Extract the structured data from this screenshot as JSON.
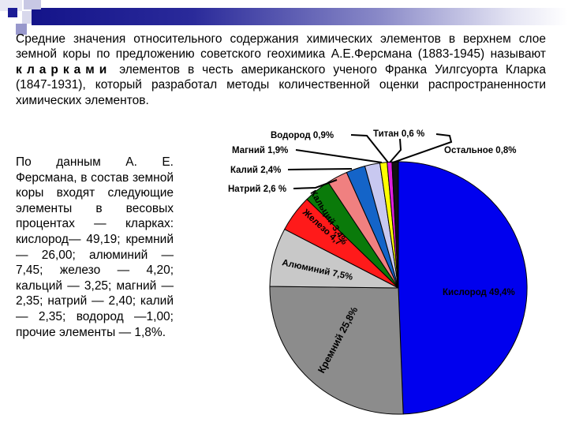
{
  "slide": {
    "top_paragraph": {
      "part1": "Средние значения относительного содержания химических элементов в верхнем слое земной коры по предложению советского геохимика А.Е.Ферсмана (1883-1945) называют ",
      "emphasis": "кларками",
      "part2": " элементов в честь американского ученого Франка Уилгсуорта Кларка (1847-1931), который разработал методы количественной оценки распространенности химических элементов."
    },
    "left_paragraph": "По данным А. Е. Ферсмана, в состав земной коры входят следующие элементы в весовых процентах — кларках: кислород— 49,19; кремний — 26,00; алюминий — 7,45; железо — 4,20; кальций — 3,25; магний — 2,35; натрий — 2,40; калий — 2,35; водород —1,00; прочие элементы — 1,8%."
  },
  "chart_data": {
    "type": "pie",
    "title": "",
    "start_angle_deg": 0,
    "direction": "clockwise",
    "slices": [
      {
        "name": "Кислород",
        "label": "Кислород 49,4%",
        "value": 49.4,
        "color": "#0000ee"
      },
      {
        "name": "Кремний",
        "label": "Кремний 25,8%",
        "value": 25.8,
        "color": "#8c8c8c"
      },
      {
        "name": "Алюминий",
        "label": "Алюминий 7,5%",
        "value": 7.5,
        "color": "#c8c8c8"
      },
      {
        "name": "Железо",
        "label": "Железо 4,7",
        "value": 4.7,
        "color": "#ff1a1a"
      },
      {
        "name": "Кальций",
        "label": "Кальций 3,4%",
        "value": 3.4,
        "color": "#0a7a0a"
      },
      {
        "name": "Натрий",
        "label": "Натрий 2,6 %",
        "value": 2.6,
        "color": "#f08080"
      },
      {
        "name": "Калий",
        "label": "Калий 2,4%",
        "value": 2.4,
        "color": "#1464c8"
      },
      {
        "name": "Магний",
        "label": "Магний 1,9%",
        "value": 1.9,
        "color": "#c8c8f0"
      },
      {
        "name": "Водород",
        "label": "Водород 0,9%",
        "value": 0.9,
        "color": "#ffff00"
      },
      {
        "name": "Титан",
        "label": "Титан 0,6 %",
        "value": 0.6,
        "color": "#e020e0"
      },
      {
        "name": "Остальное",
        "label": "Остальное 0,8%",
        "value": 0.8,
        "color": "#111111"
      }
    ],
    "legend": "none (callout labels)"
  }
}
